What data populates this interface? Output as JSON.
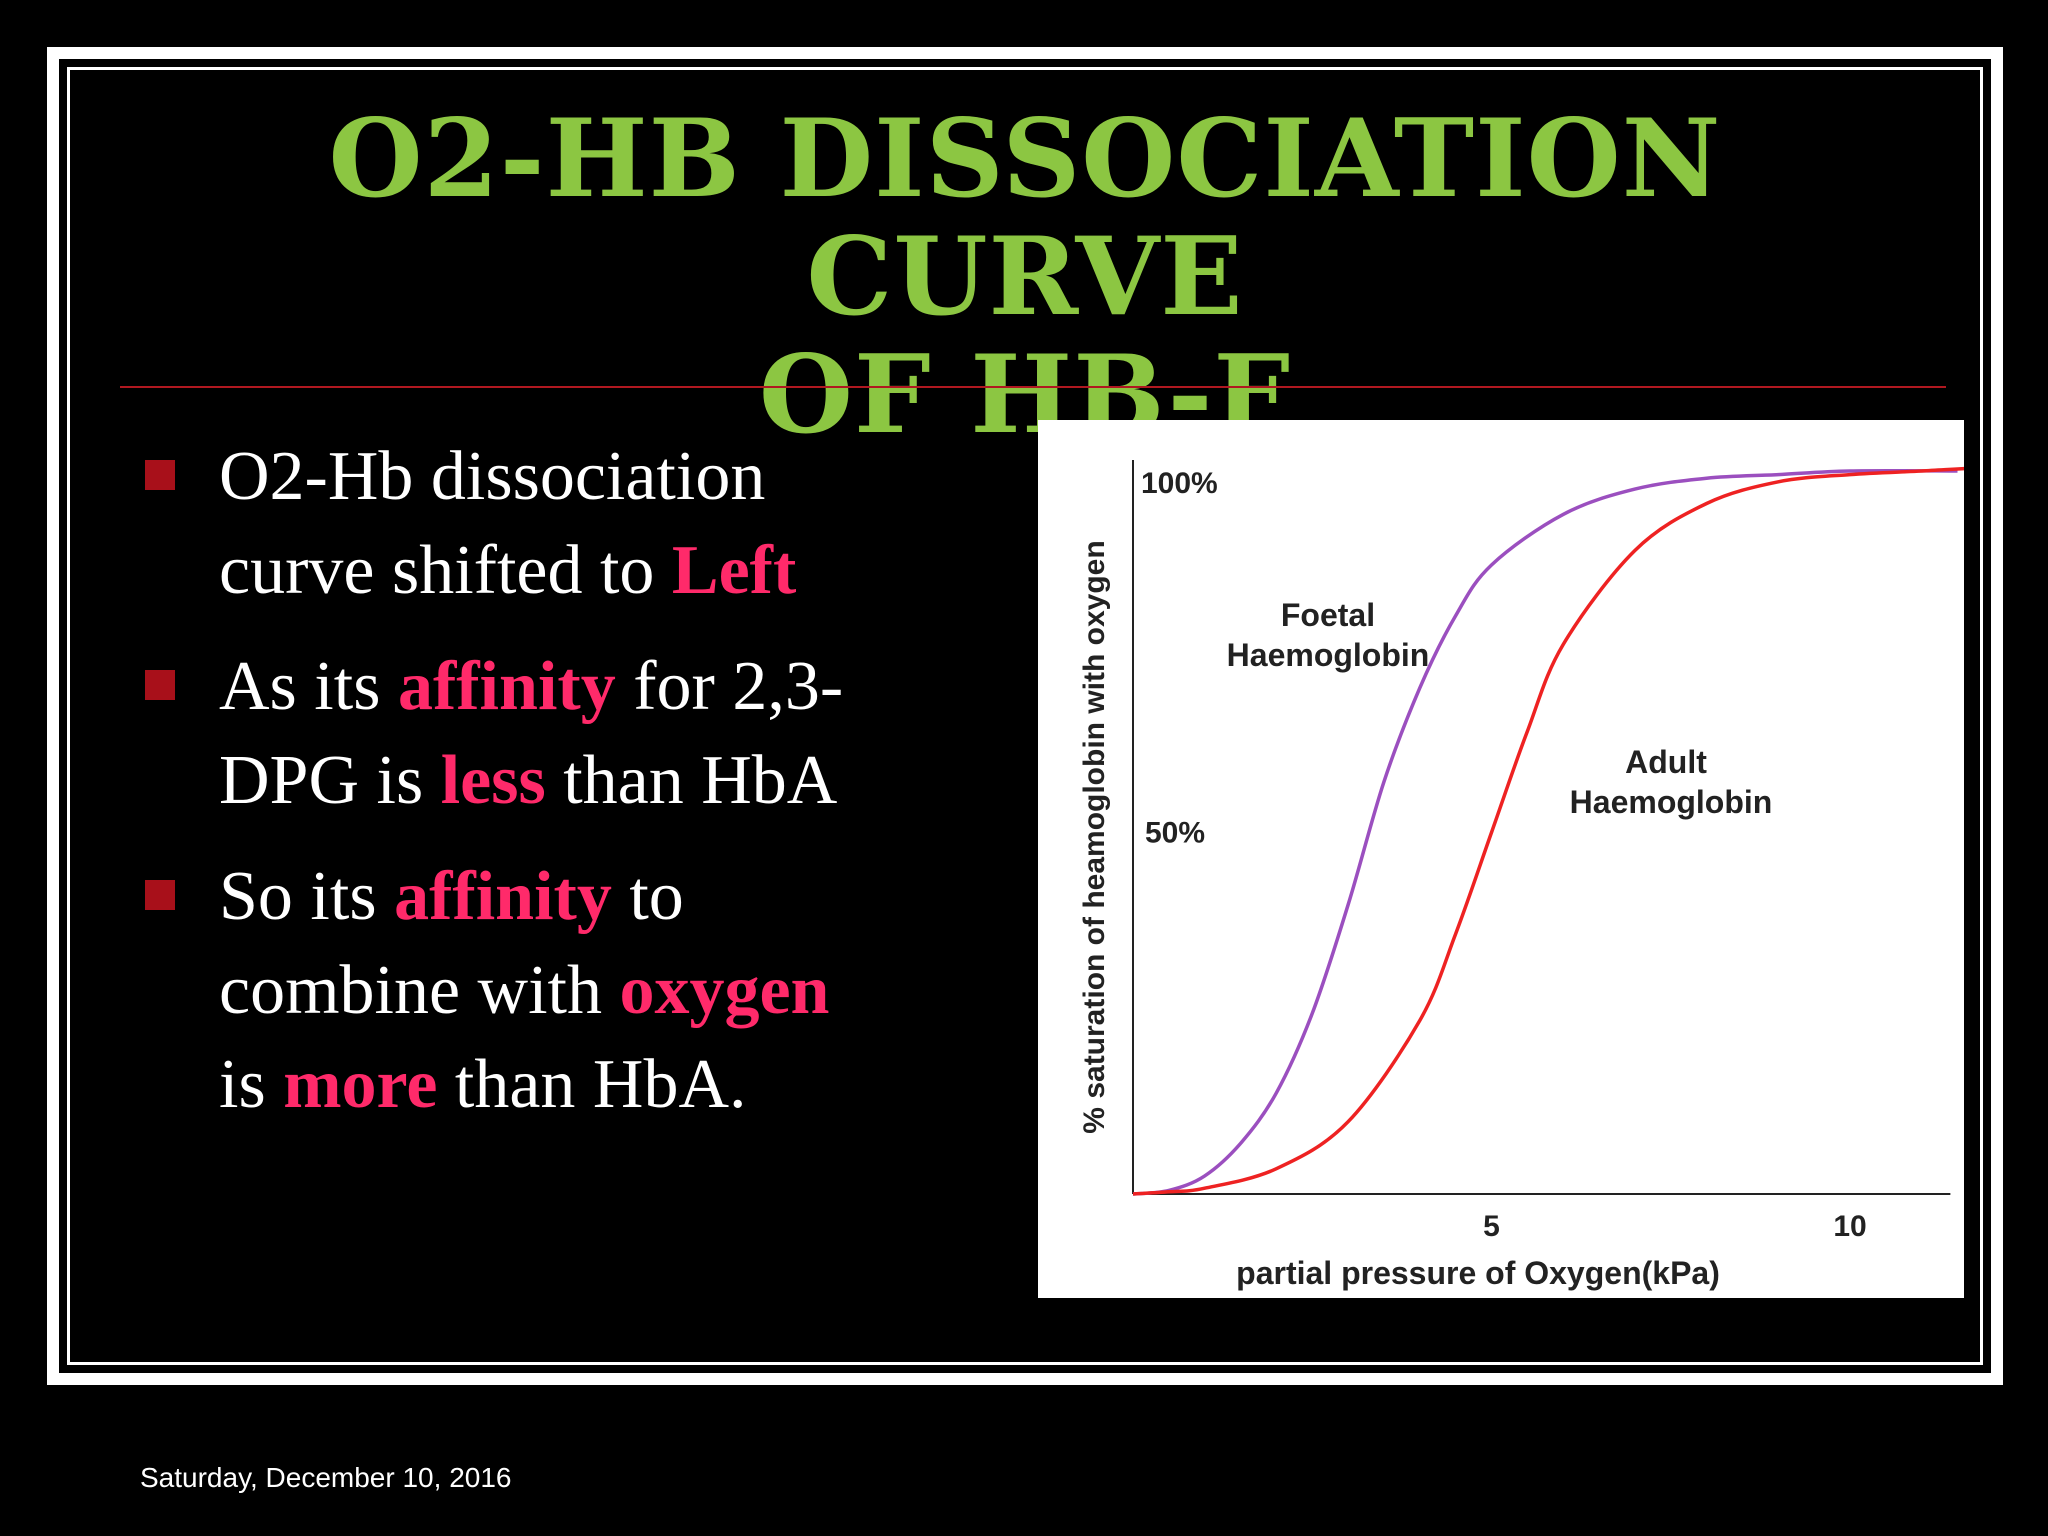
{
  "title": {
    "line1": "O2-HB DISSOCIATION CURVE",
    "line2": "OF HB-F"
  },
  "bullets": [
    {
      "line1_a": "O2-Hb dissociation",
      "line2_a": "curve shifted to ",
      "line2_hl": "Left"
    },
    {
      "line1_a": "As its ",
      "line1_hl": "affinity",
      "line1_b": " for 2,3-",
      "line2_a": "DPG is ",
      "line2_hl": "less",
      "line2_b": " than HbA"
    },
    {
      "line1_a": "So its ",
      "line1_hl": "affinity",
      "line1_b": " to",
      "line2_a": "combine with ",
      "line2_hl": "oxygen",
      "line3_a": "is ",
      "line3_hl": "more",
      "line3_b": " than HbA."
    }
  ],
  "footer": {
    "date": "Saturday, December 10, 2016"
  },
  "colors": {
    "background": "#000000",
    "title": "#8cc642",
    "highlight": "#ff2a6a",
    "bullet_marker": "#a8101a",
    "rule": "#b01820",
    "foetal_curve": "#9b4fbf",
    "adult_curve": "#ee2222"
  },
  "chart_data": {
    "type": "line",
    "xlabel": "partial pressure of Oxygen(kPa)",
    "ylabel": "% saturation of heamoglobin with oxygen",
    "xlim": [
      0,
      13
    ],
    "ylim": [
      0,
      100
    ],
    "x_ticks": [
      {
        "value": 5,
        "label": "5"
      },
      {
        "value": 10,
        "label": "10"
      }
    ],
    "y_ticks": [
      {
        "value": 100,
        "label": "100%"
      },
      {
        "value": 50,
        "label": "50%"
      }
    ],
    "series": [
      {
        "name": "Foetal Haemoglobin",
        "label_line1": "Foetal",
        "label_line2": "Haemoglobin",
        "color": "#9b4fbf",
        "points": [
          [
            0,
            0
          ],
          [
            0.5,
            0.5
          ],
          [
            1,
            2.5
          ],
          [
            1.5,
            7
          ],
          [
            2,
            14
          ],
          [
            2.5,
            25
          ],
          [
            3,
            40
          ],
          [
            3.5,
            57
          ],
          [
            4,
            70
          ],
          [
            4.5,
            80
          ],
          [
            5,
            87
          ],
          [
            6,
            94
          ],
          [
            7,
            97.5
          ],
          [
            8,
            99
          ],
          [
            9,
            99.5
          ],
          [
            10,
            100
          ],
          [
            11.5,
            100
          ]
        ]
      },
      {
        "name": "Adult Haemoglobin",
        "label_line1": "Adult",
        "label_line2": "Haemoglobin",
        "color": "#ee2222",
        "points": [
          [
            0,
            0
          ],
          [
            0.5,
            0.3
          ],
          [
            1,
            0.8
          ],
          [
            2,
            3.5
          ],
          [
            3,
            10
          ],
          [
            4,
            24
          ],
          [
            4.5,
            36
          ],
          [
            5,
            50
          ],
          [
            5.5,
            64
          ],
          [
            6,
            76
          ],
          [
            7,
            89
          ],
          [
            8,
            95.5
          ],
          [
            9,
            98.5
          ],
          [
            10,
            99.5
          ],
          [
            11,
            100
          ],
          [
            12,
            100.5
          ],
          [
            13,
            100.5
          ]
        ]
      }
    ]
  }
}
